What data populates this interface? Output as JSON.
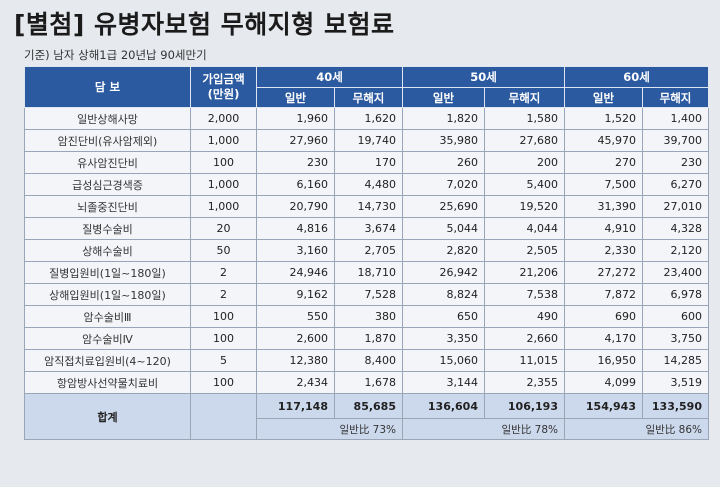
{
  "title": "[별첨] 유병자보험 무해지형 보험료",
  "subtitle": "기준) 남자 상해1급 20년납 90세만기",
  "headers": {
    "coverage": "담 보",
    "amount": "가입금액\n(만원)",
    "ages": [
      "40세",
      "50세",
      "60세"
    ],
    "general": "일반",
    "nonrefund": "무해지"
  },
  "rows": [
    {
      "name": "일반상해사망",
      "amount": "2,000",
      "v": [
        "1,960",
        "1,620",
        "1,820",
        "1,580",
        "1,520",
        "1,400"
      ]
    },
    {
      "name": "암진단비(유사암제외)",
      "amount": "1,000",
      "v": [
        "27,960",
        "19,740",
        "35,980",
        "27,680",
        "45,970",
        "39,700"
      ]
    },
    {
      "name": "유사암진단비",
      "amount": "100",
      "v": [
        "230",
        "170",
        "260",
        "200",
        "270",
        "230"
      ]
    },
    {
      "name": "급성심근경색증",
      "amount": "1,000",
      "v": [
        "6,160",
        "4,480",
        "7,020",
        "5,400",
        "7,500",
        "6,270"
      ]
    },
    {
      "name": "뇌졸중진단비",
      "amount": "1,000",
      "v": [
        "20,790",
        "14,730",
        "25,690",
        "19,520",
        "31,390",
        "27,010"
      ]
    },
    {
      "name": "질병수술비",
      "amount": "20",
      "v": [
        "4,816",
        "3,674",
        "5,044",
        "4,044",
        "4,910",
        "4,328"
      ]
    },
    {
      "name": "상해수술비",
      "amount": "50",
      "v": [
        "3,160",
        "2,705",
        "2,820",
        "2,505",
        "2,330",
        "2,120"
      ]
    },
    {
      "name": "질병입원비(1일~180일)",
      "amount": "2",
      "v": [
        "24,946",
        "18,710",
        "26,942",
        "21,206",
        "27,272",
        "23,400"
      ]
    },
    {
      "name": "상해입원비(1일~180일)",
      "amount": "2",
      "v": [
        "9,162",
        "7,528",
        "8,824",
        "7,538",
        "7,872",
        "6,978"
      ]
    },
    {
      "name": "암수술비Ⅲ",
      "amount": "100",
      "v": [
        "550",
        "380",
        "650",
        "490",
        "690",
        "600"
      ]
    },
    {
      "name": "암수술비Ⅳ",
      "amount": "100",
      "v": [
        "2,600",
        "1,870",
        "3,350",
        "2,660",
        "4,170",
        "3,750"
      ]
    },
    {
      "name": "암직접치료입원비(4~120)",
      "amount": "5",
      "v": [
        "12,380",
        "8,400",
        "15,060",
        "11,015",
        "16,950",
        "14,285"
      ]
    },
    {
      "name": "항암방사선약물치료비",
      "amount": "100",
      "v": [
        "2,434",
        "1,678",
        "3,144",
        "2,355",
        "4,099",
        "3,519"
      ]
    }
  ],
  "total": {
    "label": "합계",
    "v": [
      "117,148",
      "85,685",
      "136,604",
      "106,193",
      "154,943",
      "133,590"
    ],
    "ratios": [
      "일반比 73%",
      "일반比 78%",
      "일반比 86%"
    ]
  }
}
